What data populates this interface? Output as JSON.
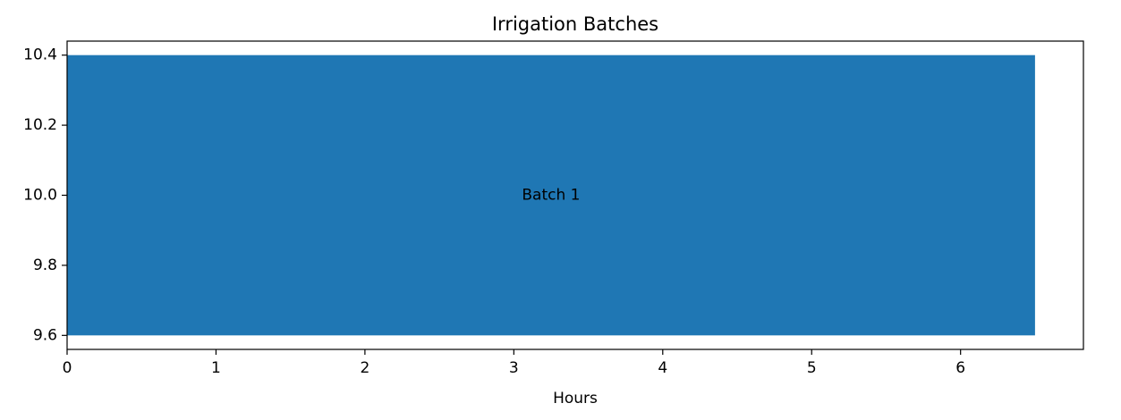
{
  "chart_data": {
    "type": "bar",
    "orientation": "horizontal",
    "title": "Irrigation Batches",
    "xlabel": "Hours",
    "ylabel": "",
    "xlim": [
      0,
      6.825
    ],
    "ylim": [
      9.56,
      10.44
    ],
    "xticks": [
      0,
      1,
      2,
      3,
      4,
      5,
      6
    ],
    "yticks": [
      9.6,
      9.8,
      10.0,
      10.2,
      10.4
    ],
    "ytick_labels": [
      "9.6",
      "9.8",
      "10.0",
      "10.2",
      "10.4"
    ],
    "grid": false,
    "bars": [
      {
        "label": "Batch 1",
        "y": 10.0,
        "height": 0.8,
        "start": 0,
        "duration": 6.5,
        "color": "#1f77b4"
      }
    ]
  }
}
